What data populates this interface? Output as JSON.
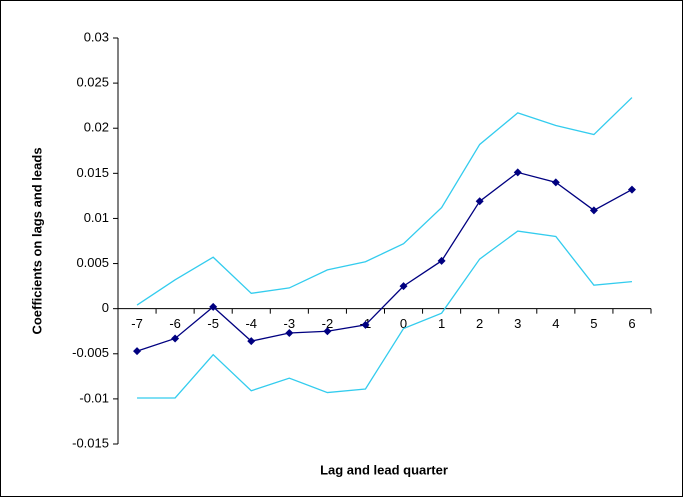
{
  "chart_data": {
    "type": "line",
    "x_label": "Lag and lead quarter",
    "y_label": "Coefficients on lags and leads",
    "categories": [
      "-7",
      "-6",
      "-5",
      "-4",
      "-3",
      "-2",
      "-1",
      "0",
      "1",
      "2",
      "3",
      "4",
      "5",
      "6"
    ],
    "series": [
      {
        "color": "#000080",
        "marker": "diamond",
        "values": [
          -0.0047,
          -0.0033,
          0.0002,
          -0.0036,
          -0.0027,
          -0.0025,
          -0.0018,
          0.0025,
          0.0053,
          0.0119,
          0.0151,
          0.014,
          0.0109,
          0.0132
        ]
      },
      {
        "color": "#33ccee",
        "marker": "none",
        "values": [
          0.0004,
          0.0032,
          0.0057,
          0.0017,
          0.0023,
          0.0043,
          0.0052,
          0.0072,
          0.0112,
          0.0182,
          0.0217,
          0.0203,
          0.0193,
          0.0234
        ]
      },
      {
        "color": "#33ccee",
        "marker": "none",
        "values": [
          -0.0099,
          -0.0099,
          -0.0051,
          -0.0091,
          -0.0077,
          -0.0093,
          -0.0089,
          -0.0022,
          -0.0005,
          0.0055,
          0.0086,
          0.008,
          0.0026,
          0.003
        ]
      }
    ],
    "ylim": [
      -0.015,
      0.03
    ],
    "yticks": [
      -0.015,
      -0.01,
      -0.005,
      0,
      0.005,
      0.01,
      0.015,
      0.02,
      0.025,
      0.03
    ],
    "grid": false
  }
}
